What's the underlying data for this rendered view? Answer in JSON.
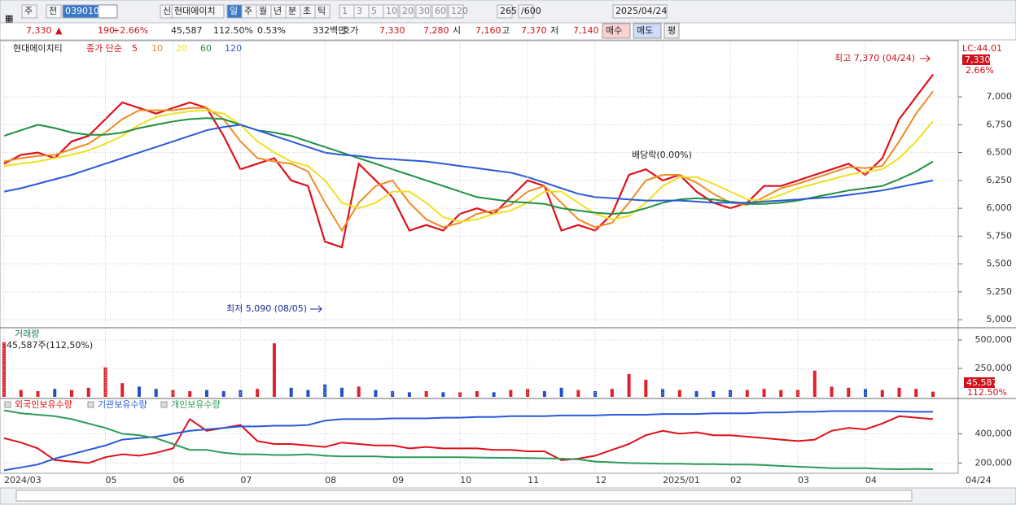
{
  "toolbar": {
    "row1": [
      "주",
      "전",
      "039010",
      "신",
      "현대에이치",
      "일",
      "주",
      "월",
      "년",
      "분",
      "초",
      "틱",
      "1",
      "3",
      "5",
      "10",
      "20",
      "30",
      "60",
      "120",
      "265",
      "/600",
      "2025/04/24"
    ],
    "row2": [
      "7,330",
      "▲",
      "190",
      "+2.66%",
      "45,587",
      "112.50%",
      "0.53%",
      "332백만",
      "호가",
      "7,330",
      "7,280",
      "시",
      "7,160",
      "고",
      "7,370",
      "저",
      "7,140",
      "매수",
      "매도",
      "평"
    ]
  },
  "chart_data": [
    {
      "type": "line",
      "title": "현대에이치티",
      "ma_label": "종가 단순",
      "grid": true,
      "ylim": [
        4950,
        7490
      ],
      "yticks": [
        {
          "value": 5000,
          "label": "5,000"
        },
        {
          "value": 5250,
          "label": "5,250"
        },
        {
          "value": 5500,
          "label": "5,500"
        },
        {
          "value": 5750,
          "label": "5,750"
        },
        {
          "value": 6000,
          "label": "6,000"
        },
        {
          "value": 6250,
          "label": "6,250"
        },
        {
          "value": 6500,
          "label": "6,500"
        },
        {
          "value": 6750,
          "label": "6,750"
        },
        {
          "value": 7000,
          "label": "7,000"
        }
      ],
      "annotations": {
        "high": "최고 7,370 (04/24)",
        "low": "최저 5,090 (08/05)",
        "dividend": "배당락(0.00%)",
        "lc": "LC:44.01",
        "price": "7,330",
        "change": "2.66%"
      },
      "series": [
        {
          "name": "5",
          "color": "#e0101a",
          "values": [
            6400,
            6480,
            6500,
            6450,
            6600,
            6650,
            6800,
            6950,
            6900,
            6850,
            6900,
            6950,
            6900,
            6650,
            6350,
            6400,
            6450,
            6250,
            6200,
            5700,
            5650,
            6400,
            6250,
            6100,
            5800,
            5850,
            5800,
            5950,
            6000,
            5950,
            6100,
            6250,
            6200,
            5800,
            5850,
            5800,
            5950,
            6300,
            6350,
            6250,
            6300,
            6150,
            6050,
            6000,
            6050,
            6200,
            6200,
            6250,
            6300,
            6350,
            6400,
            6300,
            6450,
            6800,
            7000,
            7200
          ]
        },
        {
          "name": "10",
          "color": "#f08a24",
          "values": [
            6420,
            6450,
            6470,
            6480,
            6530,
            6580,
            6680,
            6800,
            6880,
            6880,
            6880,
            6900,
            6900,
            6800,
            6600,
            6450,
            6420,
            6400,
            6330,
            6050,
            5800,
            6050,
            6200,
            6250,
            6050,
            5900,
            5830,
            5870,
            5950,
            5980,
            6030,
            6150,
            6200,
            6050,
            5900,
            5830,
            5870,
            6050,
            6250,
            6300,
            6300,
            6230,
            6130,
            6050,
            6030,
            6100,
            6180,
            6220,
            6270,
            6320,
            6370,
            6360,
            6380,
            6600,
            6850,
            7050
          ]
        },
        {
          "name": "20",
          "color": "#f0e020",
          "values": [
            6380,
            6400,
            6420,
            6450,
            6480,
            6520,
            6580,
            6650,
            6750,
            6820,
            6850,
            6870,
            6880,
            6850,
            6750,
            6600,
            6500,
            6420,
            6380,
            6250,
            6050,
            6000,
            6050,
            6150,
            6150,
            6050,
            5920,
            5880,
            5900,
            5950,
            5980,
            6050,
            6150,
            6150,
            6050,
            5950,
            5900,
            5930,
            6050,
            6200,
            6280,
            6280,
            6220,
            6150,
            6080,
            6070,
            6120,
            6180,
            6220,
            6260,
            6300,
            6330,
            6350,
            6450,
            6600,
            6780
          ]
        },
        {
          "name": "60",
          "color": "#1e9040",
          "values": [
            6650,
            6700,
            6750,
            6720,
            6680,
            6660,
            6660,
            6680,
            6720,
            6750,
            6780,
            6800,
            6810,
            6800,
            6750,
            6700,
            6680,
            6650,
            6600,
            6550,
            6500,
            6450,
            6400,
            6350,
            6300,
            6250,
            6200,
            6150,
            6100,
            6080,
            6060,
            6050,
            6040,
            6000,
            5980,
            5960,
            5950,
            5960,
            6000,
            6050,
            6080,
            6090,
            6080,
            6060,
            6040,
            6040,
            6050,
            6070,
            6100,
            6130,
            6160,
            6180,
            6200,
            6260,
            6330,
            6420
          ]
        },
        {
          "name": "120",
          "color": "#2a5ad8",
          "values": [
            6150,
            6180,
            6220,
            6260,
            6300,
            6350,
            6400,
            6450,
            6500,
            6550,
            6600,
            6650,
            6700,
            6730,
            6750,
            6700,
            6650,
            6600,
            6550,
            6500,
            6480,
            6470,
            6450,
            6440,
            6430,
            6420,
            6400,
            6380,
            6360,
            6340,
            6320,
            6280,
            6230,
            6180,
            6130,
            6100,
            6090,
            6080,
            6070,
            6070,
            6070,
            6060,
            6050,
            6050,
            6050,
            6060,
            6070,
            6080,
            6090,
            6100,
            6120,
            6140,
            6160,
            6190,
            6220,
            6250
          ]
        }
      ]
    },
    {
      "type": "bar",
      "title": "거래량",
      "subtitle": "45,587주(112,50%)",
      "last_label": "45,587",
      "ratio_label": "112.50%",
      "ylim": [
        0,
        600000
      ],
      "yticks": [
        {
          "value": 250000,
          "label": "250,000"
        },
        {
          "value": 500000,
          "label": "500,000"
        }
      ],
      "values": [
        480000,
        60000,
        50000,
        70000,
        60000,
        80000,
        260000,
        120000,
        90000,
        70000,
        60000,
        50000,
        60000,
        50000,
        60000,
        70000,
        470000,
        80000,
        60000,
        110000,
        80000,
        90000,
        60000,
        50000,
        40000,
        50000,
        40000,
        40000,
        50000,
        40000,
        60000,
        70000,
        50000,
        80000,
        60000,
        50000,
        70000,
        200000,
        150000,
        70000,
        60000,
        50000,
        50000,
        60000,
        60000,
        70000,
        60000,
        60000,
        230000,
        90000,
        80000,
        70000,
        60000,
        80000,
        70000,
        45587
      ]
    },
    {
      "type": "line",
      "ylim": [
        130000,
        630000
      ],
      "yticks": [
        {
          "value": 200000,
          "label": "200,000"
        },
        {
          "value": 400000,
          "label": "400,000"
        }
      ],
      "categories": [
        "2024/03",
        null,
        null,
        null,
        null,
        null,
        "05",
        null,
        null,
        null,
        "06",
        null,
        null,
        null,
        "07",
        null,
        null,
        null,
        null,
        "08",
        null,
        null,
        null,
        "09",
        null,
        null,
        null,
        "10",
        null,
        null,
        null,
        "11",
        null,
        null,
        null,
        "12",
        null,
        null,
        null,
        "2025/01",
        null,
        null,
        null,
        "02",
        null,
        null,
        null,
        "03",
        null,
        null,
        null,
        "04",
        null,
        null,
        null,
        "04/24"
      ],
      "series": [
        {
          "name": "외국인보유수량",
          "color": "#e0101a",
          "values": [
            370000,
            340000,
            300000,
            220000,
            210000,
            200000,
            240000,
            260000,
            250000,
            270000,
            300000,
            500000,
            420000,
            440000,
            460000,
            350000,
            330000,
            330000,
            320000,
            310000,
            340000,
            330000,
            320000,
            320000,
            300000,
            310000,
            300000,
            300000,
            300000,
            290000,
            290000,
            280000,
            280000,
            220000,
            230000,
            250000,
            290000,
            330000,
            390000,
            420000,
            400000,
            410000,
            390000,
            390000,
            380000,
            370000,
            360000,
            350000,
            360000,
            420000,
            440000,
            430000,
            470000,
            520000,
            510000,
            500000
          ]
        },
        {
          "name": "기관보유수량",
          "color": "#2a5ad8",
          "values": [
            150000,
            170000,
            190000,
            230000,
            260000,
            290000,
            320000,
            360000,
            370000,
            380000,
            400000,
            420000,
            430000,
            440000,
            450000,
            450000,
            455000,
            455000,
            460000,
            490000,
            500000,
            500000,
            500000,
            505000,
            505000,
            505000,
            510000,
            510000,
            515000,
            515000,
            520000,
            520000,
            520000,
            525000,
            525000,
            525000,
            530000,
            530000,
            530000,
            535000,
            535000,
            535000,
            540000,
            540000,
            540000,
            545000,
            545000,
            550000,
            550000,
            555000,
            555000,
            555000,
            555000,
            552000,
            550000,
            550000
          ]
        },
        {
          "name": "개인보유수량",
          "color": "#2e9a58",
          "values": [
            560000,
            540000,
            530000,
            520000,
            500000,
            470000,
            440000,
            400000,
            390000,
            370000,
            330000,
            290000,
            290000,
            270000,
            260000,
            260000,
            255000,
            255000,
            260000,
            250000,
            245000,
            245000,
            245000,
            240000,
            240000,
            240000,
            240000,
            240000,
            238000,
            236000,
            235000,
            234000,
            232000,
            230000,
            225000,
            210000,
            205000,
            200000,
            198000,
            195000,
            195000,
            193000,
            192000,
            190000,
            190000,
            186000,
            180000,
            175000,
            170000,
            165000,
            165000,
            165000,
            160000,
            158000,
            160000,
            158000
          ]
        }
      ]
    }
  ]
}
